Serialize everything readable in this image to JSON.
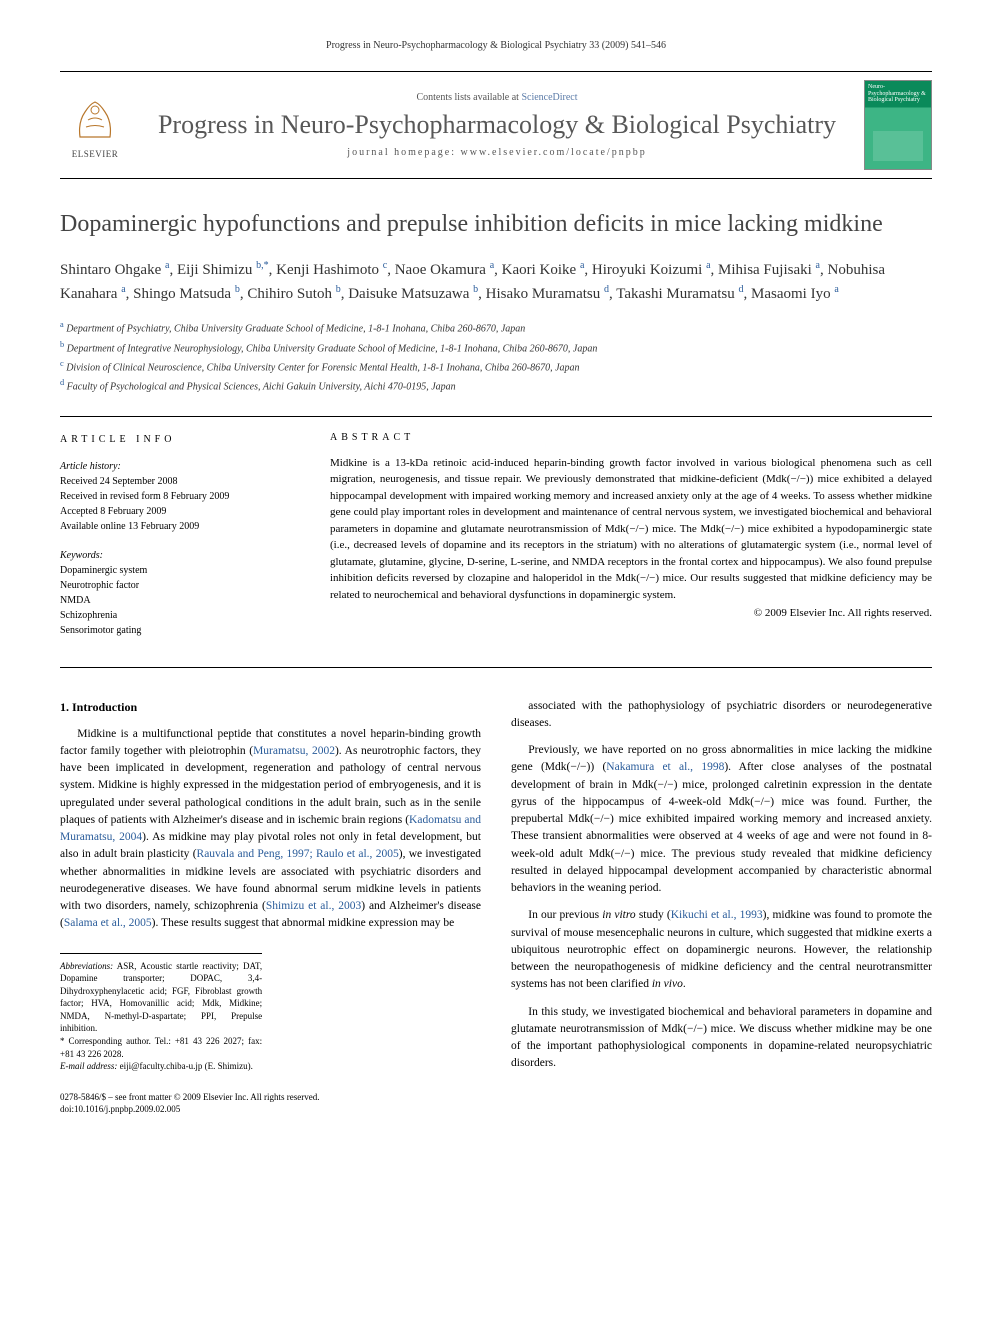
{
  "runningHeader": "Progress in Neuro-Psychopharmacology & Biological Psychiatry 33 (2009) 541–546",
  "banner": {
    "contentsPrefix": "Contents lists available at ",
    "contentsLink": "ScienceDirect",
    "journalName": "Progress in Neuro-Psychopharmacology & Biological Psychiatry",
    "homepagePrefix": "journal homepage: ",
    "homepage": "www.elsevier.com/locate/pnpbp",
    "publisherName": "ELSEVIER",
    "coverText": "Neuro-Psychopharmacology & Biological Psychiatry"
  },
  "title": "Dopaminergic hypofunctions and prepulse inhibition deficits in mice lacking midkine",
  "authorsHtml": "Shintaro Ohgake <sup>a</sup>, Eiji Shimizu <sup>b,*</sup>, Kenji Hashimoto <sup>c</sup>, Naoe Okamura <sup>a</sup>, Kaori Koike <sup>a</sup>, Hiroyuki Koizumi <sup>a</sup>, Mihisa Fujisaki <sup>a</sup>, Nobuhisa Kanahara <sup>a</sup>, Shingo Matsuda <sup>b</sup>, Chihiro Sutoh <sup>b</sup>, Daisuke Matsuzawa <sup>b</sup>, Hisako Muramatsu <sup>d</sup>, Takashi Muramatsu <sup>d</sup>, Masaomi Iyo <sup>a</sup>",
  "affiliations": [
    {
      "sup": "a",
      "text": "Department of Psychiatry, Chiba University Graduate School of Medicine, 1-8-1 Inohana, Chiba 260-8670, Japan"
    },
    {
      "sup": "b",
      "text": "Department of Integrative Neurophysiology, Chiba University Graduate School of Medicine, 1-8-1 Inohana, Chiba 260-8670, Japan"
    },
    {
      "sup": "c",
      "text": "Division of Clinical Neuroscience, Chiba University Center for Forensic Mental Health, 1-8-1 Inohana, Chiba 260-8670, Japan"
    },
    {
      "sup": "d",
      "text": "Faculty of Psychological and Physical Sciences, Aichi Gakuin University, Aichi 470-0195, Japan"
    }
  ],
  "articleInfo": {
    "header": "ARTICLE INFO",
    "historyLabel": "Article history:",
    "history": [
      "Received 24 September 2008",
      "Received in revised form 8 February 2009",
      "Accepted 8 February 2009",
      "Available online 13 February 2009"
    ],
    "keywordsLabel": "Keywords:",
    "keywords": [
      "Dopaminergic system",
      "Neurotrophic factor",
      "NMDA",
      "Schizophrenia",
      "Sensorimotor gating"
    ]
  },
  "abstract": {
    "header": "ABSTRACT",
    "text": "Midkine is a 13-kDa retinoic acid-induced heparin-binding growth factor involved in various biological phenomena such as cell migration, neurogenesis, and tissue repair. We previously demonstrated that midkine-deficient (Mdk(−/−)) mice exhibited a delayed hippocampal development with impaired working memory and increased anxiety only at the age of 4 weeks. To assess whether midkine gene could play important roles in development and maintenance of central nervous system, we investigated biochemical and behavioral parameters in dopamine and glutamate neurotransmission of Mdk(−/−) mice. The Mdk(−/−) mice exhibited a hypodopaminergic state (i.e., decreased levels of dopamine and its receptors in the striatum) with no alterations of glutamatergic system (i.e., normal level of glutamate, glutamine, glycine, D-serine, L-serine, and NMDA receptors in the frontal cortex and hippocampus). We also found prepulse inhibition deficits reversed by clozapine and haloperidol in the Mdk(−/−) mice. Our results suggested that midkine deficiency may be related to neurochemical and behavioral dysfunctions in dopaminergic system.",
    "copyright": "© 2009 Elsevier Inc. All rights reserved."
  },
  "body": {
    "section1Heading": "1. Introduction",
    "col1": [
      "Midkine is a multifunctional peptide that constitutes a novel heparin-binding growth factor family together with pleiotrophin (<span class='cite'>Muramatsu, 2002</span>). As neurotrophic factors, they have been implicated in development, regeneration and pathology of central nervous system. Midkine is highly expressed in the midgestation period of embryogenesis, and it is upregulated under several pathological conditions in the adult brain, such as in the senile plaques of patients with Alzheimer's disease and in ischemic brain regions (<span class='cite'>Kadomatsu and Muramatsu, 2004</span>). As midkine may play pivotal roles not only in fetal development, but also in adult brain plasticity (<span class='cite'>Rauvala and Peng, 1997; Raulo et al., 2005</span>), we investigated whether abnormalities in midkine levels are associated with psychiatric disorders and neurodegenerative diseases. We have found abnormal serum midkine levels in patients with two disorders, namely, schizophrenia (<span class='cite'>Shimizu et al., 2003</span>) and Alzheimer's disease (<span class='cite'>Salama et al., 2005</span>). These results suggest that abnormal midkine expression may be"
    ],
    "col2": [
      "associated with the pathophysiology of psychiatric disorders or neurodegenerative diseases.",
      "Previously, we have reported on no gross abnormalities in mice lacking the midkine gene (Mdk(−/−)) (<span class='cite'>Nakamura et al., 1998</span>). After close analyses of the postnatal development of brain in Mdk(−/−) mice, prolonged calretinin expression in the dentate gyrus of the hippocampus of 4-week-old Mdk(−/−) mice was found. Further, the prepubertal Mdk(−/−) mice exhibited impaired working memory and increased anxiety. These transient abnormalities were observed at 4 weeks of age and were not found in 8-week-old adult Mdk(−/−) mice. The previous study revealed that midkine deficiency resulted in delayed hippocampal development accompanied by characteristic abnormal behaviors in the weaning period.",
      "In our previous <i>in vitro</i> study (<span class='cite'>Kikuchi et al., 1993</span>), midkine was found to promote the survival of mouse mesencephalic neurons in culture, which suggested that midkine exerts a ubiquitous neurotrophic effect on dopaminergic neurons. However, the relationship between the neuropathogenesis of midkine deficiency and the central neurotransmitter systems has not been clarified <i>in vivo</i>.",
      "In this study, we investigated biochemical and behavioral parameters in dopamine and glutamate neurotransmission of Mdk(−/−) mice. We discuss whether midkine may be one of the important pathophysiological components in dopamine-related neuropsychiatric disorders."
    ]
  },
  "footnotes": {
    "abbrevLabel": "Abbreviations:",
    "abbrev": " ASR, Acoustic startle reactivity; DAT, Dopamine transporter; DOPAC, 3,4-Dihydroxyphenylacetic acid; FGF, Fibroblast growth factor; HVA, Homovanillic acid; Mdk, Midkine; NMDA, N-methyl-D-aspartate; PPI, Prepulse inhibition.",
    "corrLabel": "* Corresponding author.",
    "corr": " Tel.: +81 43 226 2027; fax: +81 43 226 2028.",
    "emailLabel": "E-mail address:",
    "email": " eiji@faculty.chiba-u.jp (E. Shimizu)."
  },
  "bottom": {
    "issn": "0278-5846/$ – see front matter © 2009 Elsevier Inc. All rights reserved.",
    "doi": "doi:10.1016/j.pnpbp.2009.02.005"
  },
  "colors": {
    "link": "#2a5c9a",
    "journalName": "#575757",
    "coverTop": "#0a8a5a",
    "coverBottom": "#3db585",
    "elsevier": "#ed7d31"
  }
}
